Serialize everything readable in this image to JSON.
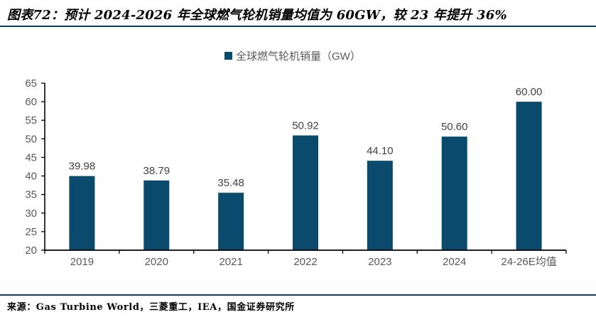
{
  "header": {
    "title": "图表72：预计 2024-2026 年全球燃气轮机销量均值为 60GW，较 23 年提升 36%"
  },
  "legend": {
    "label": "全球燃气轮机销量（GW）"
  },
  "footer": {
    "source": "来源：Gas Turbine World，三菱重工，IEA，国金证券研究所"
  },
  "colors": {
    "accent_line": "#17395B",
    "bar": "#094A6D",
    "axis": "#000000",
    "tick_label": "#595959",
    "data_label": "#3F3F3F"
  },
  "chart_data": {
    "type": "bar",
    "title": "预计 2024-2026 年全球燃气轮机销量均值为 60GW，较 23 年提升 36%",
    "categories": [
      "2019",
      "2020",
      "2021",
      "2022",
      "2023",
      "2024",
      "24-26E均值"
    ],
    "values": [
      39.98,
      38.79,
      35.48,
      50.92,
      44.1,
      50.6,
      60.0
    ],
    "value_labels": [
      "39.98",
      "38.79",
      "35.48",
      "50.92",
      "44.10",
      "50.60",
      "60.00"
    ],
    "legend": [
      "全球燃气轮机销量（GW）"
    ],
    "legend_position": "top-center",
    "xlabel": "",
    "ylabel": "",
    "ylim": [
      20,
      65
    ],
    "yticks": [
      20,
      25,
      30,
      35,
      40,
      45,
      50,
      55,
      60,
      65
    ],
    "grid": false,
    "bar_color": "#094A6D"
  }
}
